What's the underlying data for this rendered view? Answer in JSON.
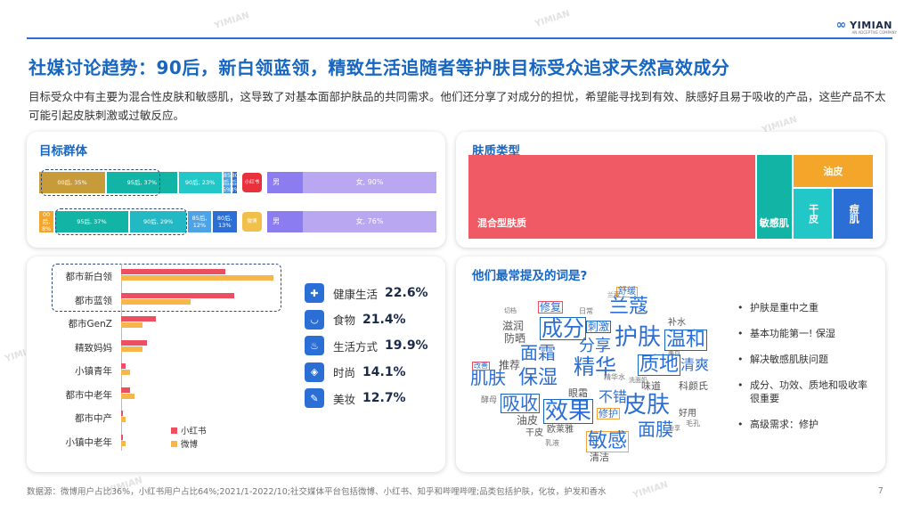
{
  "brand": {
    "name": "YIMIAN",
    "subtitle": "AN ADCEPTIVE COMPANY",
    "watermark": "YIMIAN"
  },
  "title": "社媒讨论趋势：90后，新白领蓝领，精致生活追随者等护肤目标受众追求天然高效成分",
  "description": "目标受众中有主要为混合性皮肤和敏感肌，这导致了对基本面部护肤品的共同需求。他们还分享了对成分的担忧，希望能寻找到有效、肤感好且易于吸收的产品，这些产品不太可能引起皮肤刺激或过敏反应。",
  "panels": {
    "target_group": "目标群体",
    "skin_type": "肤质类型",
    "words": "他们最常提及的词是?"
  },
  "platforms": {
    "xiaohongshu": "小红书",
    "weibo": "微博"
  },
  "age_bars": {
    "xiaohongshu": {
      "age_segments": [
        {
          "label": "00后, 35%",
          "value": 35,
          "color": "#c79a3a"
        },
        {
          "label": "95后, 37%",
          "value": 37,
          "color": "#12b5a5"
        },
        {
          "label": "90后, 23%",
          "value": 23,
          "color": "#22c7c7"
        },
        {
          "label": "85后, 5%",
          "value": 5,
          "color": "#4da3e8"
        },
        {
          "label": "80后, 3%",
          "value": 3,
          "color": "#2b6fd6"
        }
      ],
      "gender_segments": [
        {
          "label": "男",
          "color": "#8b7cf0"
        },
        {
          "label": "女, 90%",
          "color": "#b9a7f2"
        }
      ]
    },
    "weibo": {
      "age_segments": [
        {
          "label": "00后, 8%",
          "value": 8,
          "color": "#f4a62a"
        },
        {
          "label": "95后, 37%",
          "value": 37,
          "color": "#12b5a5"
        },
        {
          "label": "90后, 29%",
          "value": 29,
          "color": "#22b8c4"
        },
        {
          "label": "85后, 12%",
          "value": 12,
          "color": "#4da3e8"
        },
        {
          "label": "80后, 13%",
          "value": 13,
          "color": "#2b6fd6"
        }
      ],
      "gender_segments": [
        {
          "label": "男",
          "color": "#8b7cf0"
        },
        {
          "label": "女, 76%",
          "color": "#b9a7f2"
        }
      ]
    }
  },
  "hbar_legend": [
    {
      "label": "小红书",
      "color": "#ec4f5f"
    },
    {
      "label": "微博",
      "color": "#f7b64b"
    }
  ],
  "categories": [
    {
      "label": "健康生活",
      "value": "22.6%",
      "icon": "medical-kit-icon",
      "glyph": "✚"
    },
    {
      "label": "食物",
      "value": "21.4%",
      "icon": "bowl-icon",
      "glyph": "◡"
    },
    {
      "label": "生活方式",
      "value": "19.9%",
      "icon": "bathtub-icon",
      "glyph": "♨"
    },
    {
      "label": "时尚",
      "value": "14.1%",
      "icon": "bag-icon",
      "glyph": "◈"
    },
    {
      "label": "美妆",
      "value": "12.7%",
      "icon": "cosmetics-icon",
      "glyph": "✎"
    }
  ],
  "word_cloud": [
    {
      "text": "成分",
      "size": 24,
      "color": "#2b6fd6",
      "box": "#1766c0"
    },
    {
      "text": "兰蔻",
      "size": 22,
      "color": "#2b6fd6"
    },
    {
      "text": "护肤",
      "size": 26,
      "color": "#2b6fd6"
    },
    {
      "text": "温和",
      "size": 22,
      "color": "#2b6fd6",
      "box": "#1766c0"
    },
    {
      "text": "面霜",
      "size": 20,
      "color": "#2b6fd6"
    },
    {
      "text": "分享",
      "size": 18,
      "color": "#2b6fd6"
    },
    {
      "text": "精华",
      "size": 24,
      "color": "#2b6fd6"
    },
    {
      "text": "质地",
      "size": 22,
      "color": "#2b6fd6",
      "box": "#1766c0"
    },
    {
      "text": "清爽",
      "size": 16,
      "color": "#2b6fd6"
    },
    {
      "text": "肌肤",
      "size": 20,
      "color": "#2b6fd6"
    },
    {
      "text": "保湿",
      "size": 22,
      "color": "#2b6fd6"
    },
    {
      "text": "皮肤",
      "size": 26,
      "color": "#2b6fd6"
    },
    {
      "text": "吸收",
      "size": 20,
      "color": "#2b6fd6",
      "box": "#1766c0"
    },
    {
      "text": "效果",
      "size": 26,
      "color": "#2b6fd6",
      "box": "#1766c0"
    },
    {
      "text": "敏感",
      "size": 22,
      "color": "#2b6fd6",
      "box": "#f0a43a"
    },
    {
      "text": "面膜",
      "size": 20,
      "color": "#2b6fd6"
    },
    {
      "text": "修复",
      "size": 12,
      "color": "#2b6fd6",
      "box": "#ec4f5f"
    },
    {
      "text": "舒缓",
      "size": 10,
      "color": "#2b6fd6",
      "box": "#f0a43a"
    },
    {
      "text": "刺激",
      "size": 12,
      "color": "#2b6fd6",
      "box": "#1766c0"
    },
    {
      "text": "改善",
      "size": 8,
      "color": "#2b6fd6",
      "box": "#ec4f5f"
    },
    {
      "text": "修护",
      "size": 11,
      "color": "#2b6fd6",
      "box": "#f0a43a"
    },
    {
      "text": "不错",
      "size": 16,
      "color": "#2b6fd6"
    },
    {
      "text": "补水",
      "size": 10,
      "color": "#555"
    },
    {
      "text": "滋润",
      "size": 12,
      "color": "#555"
    },
    {
      "text": "防晒",
      "size": 12,
      "color": "#555"
    },
    {
      "text": "推荐",
      "size": 12,
      "color": "#555"
    },
    {
      "text": "油皮",
      "size": 12,
      "color": "#555"
    },
    {
      "text": "眼霜",
      "size": 11,
      "color": "#555"
    },
    {
      "text": "味道",
      "size": 11,
      "color": "#555"
    },
    {
      "text": "科颜氏",
      "size": 11,
      "color": "#555"
    },
    {
      "text": "欧莱雅",
      "size": 10,
      "color": "#555"
    },
    {
      "text": "干皮",
      "size": 10,
      "color": "#555"
    },
    {
      "text": "清洁",
      "size": 11,
      "color": "#555"
    },
    {
      "text": "好用",
      "size": 10,
      "color": "#555"
    },
    {
      "text": "日常",
      "size": 8,
      "color": "#777"
    },
    {
      "text": "精华水",
      "size": 8,
      "color": "#777"
    },
    {
      "text": "酵母",
      "size": 9,
      "color": "#777"
    },
    {
      "text": "乳液",
      "size": 8,
      "color": "#777"
    },
    {
      "text": "毛孔",
      "size": 8,
      "color": "#777"
    },
    {
      "text": "兰蔻",
      "size": 7,
      "color": "#777"
    },
    {
      "text": "切档",
      "size": 7,
      "color": "#777"
    },
    {
      "text": "洗面奶",
      "size": 7,
      "color": "#777"
    },
    {
      "text": "美白",
      "size": 7,
      "color": "#777"
    },
    {
      "text": "分享",
      "size": 7,
      "color": "#777"
    }
  ],
  "bullets": [
    "护肤是重中之重",
    "基本功能第一! 保湿",
    "解决敏感肌肤问题",
    "成分、功效、质地和吸收率很重要",
    "高级需求：修护"
  ],
  "source": "数据源：微博用户占比36%，小红书用户占比64%;2021/1-2022/10;社交媒体平台包括微博、小红书、知乎和哔哩哔哩;品类包括护肤，化妆，护发和香水",
  "page_number": "7",
  "chart_data": [
    {
      "type": "bar",
      "title": "目标群体",
      "stacked": true,
      "orientation": "horizontal",
      "categories": [
        "小红书",
        "微博"
      ],
      "series": [
        {
          "name": "00后",
          "values": [
            35,
            8
          ]
        },
        {
          "name": "95后",
          "values": [
            37,
            37
          ]
        },
        {
          "name": "90后",
          "values": [
            23,
            29
          ]
        },
        {
          "name": "85后",
          "values": [
            5,
            12
          ]
        },
        {
          "name": "80后",
          "values": [
            3,
            13
          ]
        }
      ],
      "gender_female_pct": [
        90,
        76
      ]
    },
    {
      "type": "heatmap",
      "title": "肤质类型",
      "categories": [
        "混合型肤质",
        "敏感肌",
        "油皮",
        "干皮",
        "痘肌"
      ],
      "values": [
        71,
        9,
        8,
        6,
        6
      ],
      "colors": [
        "#ef5a64",
        "#12b5a5",
        "#f4a62a",
        "#22c7c7",
        "#2b6fd6"
      ]
    },
    {
      "type": "bar",
      "orientation": "horizontal",
      "categories": [
        "都市新白领",
        "都市蓝领",
        "都市GenZ",
        "精致妈妈",
        "小镇青年",
        "都市中老年",
        "都市中产",
        "小镇中老年"
      ],
      "series": [
        {
          "name": "小红书",
          "values": [
            24,
            26,
            8,
            6,
            1,
            2,
            0.5,
            0.5
          ]
        },
        {
          "name": "微博",
          "values": [
            35,
            16,
            5,
            5,
            2,
            3,
            1,
            1
          ]
        }
      ],
      "xlim": [
        0,
        36
      ]
    }
  ]
}
